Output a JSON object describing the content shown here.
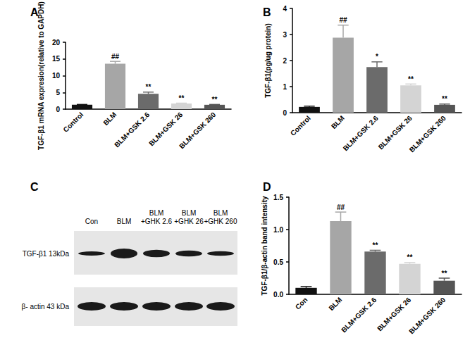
{
  "chart_data": [
    {
      "type": "bar",
      "title": "A",
      "y_label": "TGF-β1 mRNA expresion(relative to GAPDH)",
      "categories": [
        "Control",
        "BLM",
        "BLM+GSK 2.6",
        "BLM+GSK 26",
        "BLM+GSK 260"
      ],
      "values": [
        1.3,
        13.6,
        4.6,
        1.7,
        1.3
      ],
      "errors": [
        0.1,
        0.7,
        0.5,
        0.1,
        0.1
      ],
      "annotations": [
        null,
        "##",
        "**",
        "**",
        "**"
      ],
      "colors": [
        "#111111",
        "#a6a6a6",
        "#6b6b6b",
        "#d4d4d4",
        "#555555"
      ],
      "ylim": [
        0,
        20
      ],
      "yticks": [
        0,
        5,
        10,
        15,
        20
      ],
      "grid": false
    },
    {
      "type": "bar",
      "title": "B",
      "y_label": "TGF-β1(pg/ug protein)",
      "categories": [
        "Control",
        "BLM",
        "BLM+GSK 2.6",
        "BLM+GSK 26",
        "BLM+GSK 260"
      ],
      "values": [
        0.22,
        2.88,
        1.75,
        1.05,
        0.3
      ],
      "errors": [
        0.03,
        0.48,
        0.2,
        0.05,
        0.03
      ],
      "annotations": [
        null,
        "##",
        "*",
        "**",
        "**"
      ],
      "colors": [
        "#111111",
        "#a6a6a6",
        "#6b6b6b",
        "#d4d4d4",
        "#555555"
      ],
      "ylim": [
        0,
        4
      ],
      "yticks": [
        0,
        1,
        2,
        3,
        4
      ],
      "grid": false
    },
    {
      "type": "bar",
      "title": "D",
      "y_label": "TGF-β1/β-actin band intensity",
      "categories": [
        "Con",
        "BLM",
        "BLM+GSK 2.6",
        "BLM+GSK 26",
        "BLM+GSK 260"
      ],
      "values": [
        0.1,
        1.13,
        0.66,
        0.47,
        0.21
      ],
      "errors": [
        0.02,
        0.14,
        0.02,
        0.02,
        0.04
      ],
      "annotations": [
        null,
        "##",
        "**",
        "**",
        "**"
      ],
      "colors": [
        "#111111",
        "#a6a6a6",
        "#6b6b6b",
        "#d4d4d4",
        "#555555"
      ],
      "ylim": [
        0,
        1.5
      ],
      "yticks": [
        {
          "value": 0,
          "label": "0.0"
        },
        0.5,
        {
          "value": 1,
          "label": "1.0"
        },
        1.5
      ],
      "grid": false
    }
  ],
  "blot": {
    "title": "C",
    "lanes": [
      "Con",
      "BLM",
      "BLM +GHK 2.6",
      "BLM +GHK 26",
      "BLM +GHK 260"
    ],
    "rows": [
      "TGF-β1 13kDa",
      "β- actin 43 kDa"
    ]
  }
}
